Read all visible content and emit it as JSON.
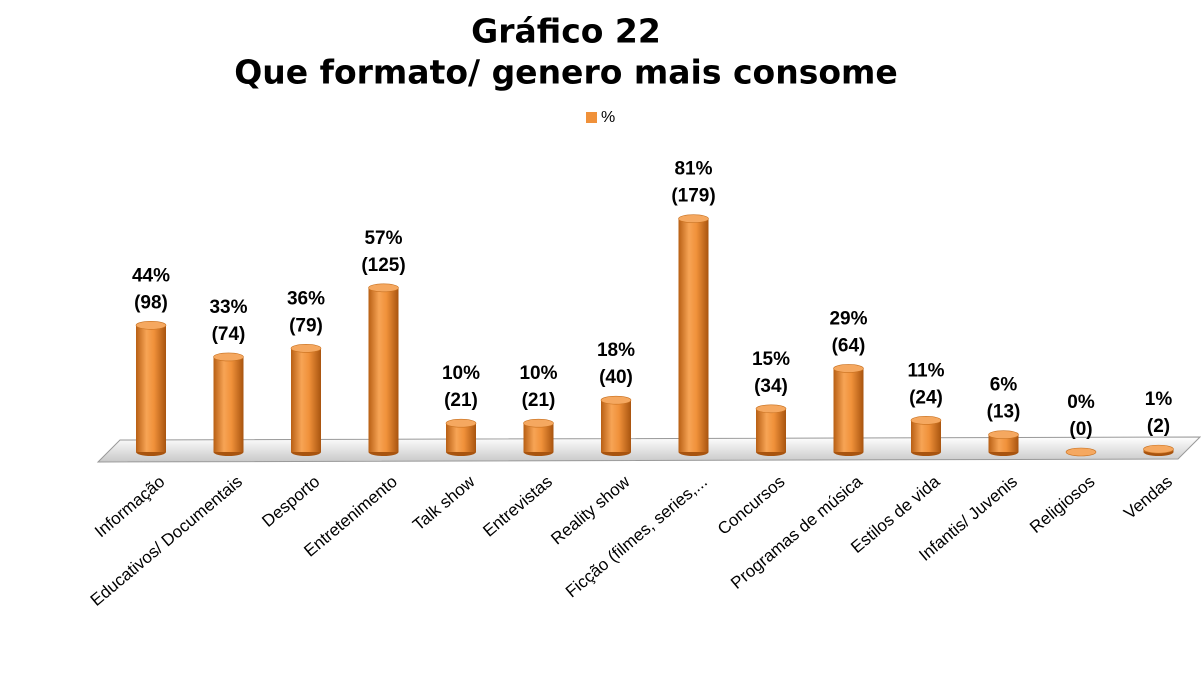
{
  "chart_data": {
    "type": "bar",
    "title": "Gráfico 22",
    "subtitle": "Que formato/ genero mais consome",
    "categories": [
      "Informação",
      "Educativos/ Documentais",
      "Desporto",
      "Entretenimento",
      "Talk show",
      "Entrevistas",
      "Reality show",
      "Ficção (filmes, series,...",
      "Concursos",
      "Programas de música",
      "Estilos de vida",
      "Infantis/ Juvenis",
      "Religiosos",
      "Vendas"
    ],
    "series": [
      {
        "name": "%",
        "color": "#f0913a",
        "values": [
          44,
          33,
          36,
          57,
          10,
          10,
          18,
          81,
          15,
          29,
          11,
          6,
          0,
          1
        ],
        "value_labels": [
          "44%",
          "33%",
          "36%",
          "57%",
          "10%",
          "10%",
          "18%",
          "81%",
          "15%",
          "29%",
          "11%",
          "6%",
          "0%",
          "1%"
        ],
        "count_labels": [
          "(98)",
          "(74)",
          "(79)",
          "(125)",
          "(21)",
          "(21)",
          "(40)",
          "(179)",
          "(34)",
          "(64)",
          "(24)",
          "(13)",
          "(0)",
          "(2)"
        ]
      }
    ],
    "ylim": [
      0,
      100
    ],
    "legend": "top"
  }
}
